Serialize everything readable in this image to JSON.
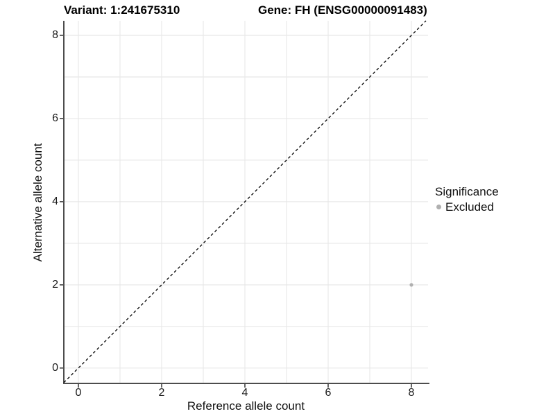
{
  "chart_data": {
    "type": "scatter",
    "title_left": "Variant: 1:241675310",
    "title_right": "Gene: FH (ENSG00000091483)",
    "xlabel": "Reference allele count",
    "ylabel": "Alternative allele count",
    "xlim": [
      -0.35,
      8.4
    ],
    "ylim": [
      -0.37,
      8.35
    ],
    "x_ticks": [
      0,
      2,
      4,
      6,
      8
    ],
    "y_ticks": [
      0,
      2,
      4,
      6,
      8
    ],
    "gridlines": {
      "every": 1,
      "from": 0,
      "to": 8
    },
    "identity_line": {
      "style": "dashed",
      "slope": 1,
      "intercept": 0
    },
    "series": [
      {
        "name": "Excluded",
        "points": [
          {
            "x": 8,
            "y": 2
          }
        ]
      }
    ],
    "legend": {
      "title": "Significance",
      "position": "right",
      "entries": [
        {
          "label": "Excluded",
          "color": "#b0b0b0"
        }
      ]
    }
  },
  "colors": {
    "background": "#ffffff",
    "grid": "#e8e8e8",
    "axis_line": "#4d4d4d",
    "tick_mark": "#333333",
    "identity_line": "#000000",
    "point": "#b0b0b0",
    "text": "#000000"
  }
}
